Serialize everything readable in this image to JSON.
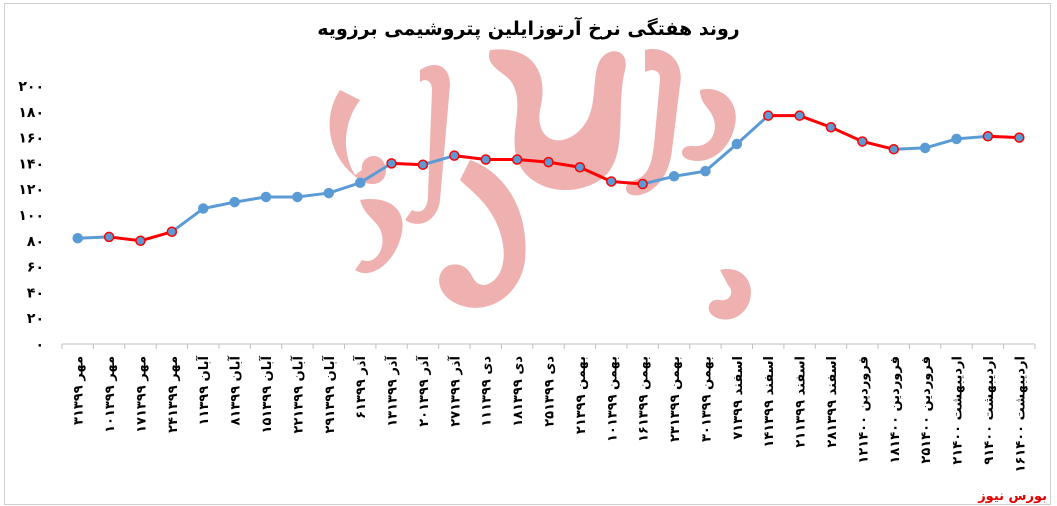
{
  "chart_data": {
    "type": "line",
    "title": "روند هفتگی نرخ آرتوزایلین پتروشیمی برزویه",
    "xlabel": "",
    "ylabel": "",
    "ylim": [
      0,
      200
    ],
    "yticks": [
      "۰",
      "۲۰",
      "۴۰",
      "۶۰",
      "۸۰",
      "۱۰۰",
      "۱۲۰",
      "۱۴۰",
      "۱۶۰",
      "۱۸۰",
      "۲۰۰"
    ],
    "grid": false,
    "categories": [
      "۳مهر ۱۳۹۹",
      "۱۰مهر ۱۳۹۹",
      "۱۷مهر ۱۳۹۹",
      "۲۴مهر ۱۳۹۹",
      "۱آبان ۱۳۹۹",
      "۸آبان ۱۳۹۹",
      "۱۵آبان ۱۳۹۹",
      "۲۲آبان ۱۳۹۹",
      "۲۹آبان ۱۳۹۹",
      "۶آذر ۱۳۹۹",
      "۱۳آذر ۱۳۹۹",
      "۲۰آذر ۱۳۹۹",
      "۲۷آذر ۱۳۹۹",
      "۱۱دی ۱۳۹۹",
      "۱۸دی ۱۳۹۹",
      "۲۵دی ۱۳۹۹",
      "۲بهمن ۱۳۹۹",
      "۱۰بهمن ۱۳۹۹",
      "۱۶بهمن ۱۳۹۹",
      "۲۳بهمن ۱۳۹۹",
      "۳۰بهمن ۱۳۹۹",
      "۷اسفند ۱۳۹۹",
      "۱۴اسفند ۱۳۹۹",
      "۲۱اسفند ۱۳۹۹",
      "۲۸اسفند ۱۳۹۹",
      "۱۲فروردین ۱۴۰۰",
      "۱۸فروردین ۱۴۰۰",
      "۲۵فروردین ۱۴۰۰",
      "۲اردیبهشت ۱۴۰۰",
      "۹اردیبهشت ۱۴۰۰",
      "۱۶اردیبهشت ۱۴۰۰"
    ],
    "values": [
      82,
      83,
      80,
      87,
      105,
      110,
      114,
      114,
      117,
      125,
      140,
      139,
      146,
      143,
      143,
      141,
      137,
      126,
      124,
      130,
      134,
      155,
      177,
      177,
      168,
      157,
      151,
      152,
      159,
      161,
      160
    ],
    "segment_colors": [
      "#5b9bd5",
      "#ff0000",
      "#ff0000",
      "#5b9bd5",
      "#5b9bd5",
      "#5b9bd5",
      "#5b9bd5",
      "#5b9bd5",
      "#5b9bd5",
      "#5b9bd5",
      "#ff0000",
      "#5b9bd5",
      "#ff0000",
      "#ff0000",
      "#ff0000",
      "#ff0000",
      "#ff0000",
      "#ff0000",
      "#5b9bd5",
      "#5b9bd5",
      "#5b9bd5",
      "#5b9bd5",
      "#ff0000",
      "#ff0000",
      "#ff0000",
      "#ff0000",
      "#5b9bd5",
      "#5b9bd5",
      "#5b9bd5",
      "#ff0000"
    ],
    "colors": {
      "up": "#5b9bd5",
      "down": "#ff0000",
      "watermark": "#d9534f"
    }
  },
  "watermark": {
    "text": "بورس نیوز"
  },
  "credit": "بورس نیوز"
}
